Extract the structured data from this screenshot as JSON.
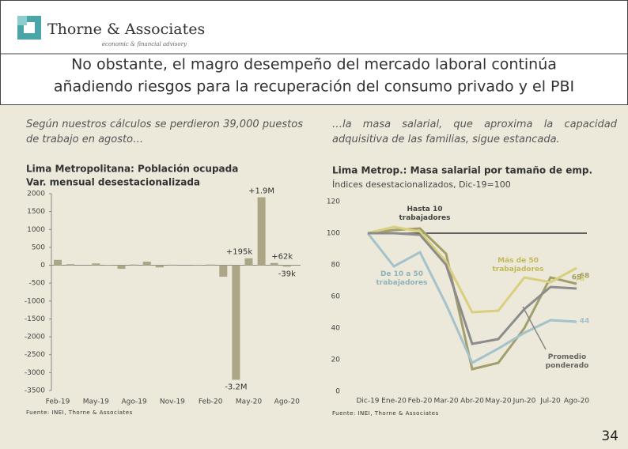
{
  "header": {
    "brand": "Thorne & Associates",
    "tagline": "economic & financial advisory",
    "title_lines": [
      "No obstante, el magro desempeño del mercado laboral continúa",
      "añadiendo riesgos para la recuperación del consumo privado y el PBI"
    ]
  },
  "intro": [
    "Según nuestros cálculos se perdieron 39,000 puestos de trabajo en agosto…",
    "…la masa salarial, que aproxima la capacidad adquisitiva de las familias, sigue estancada."
  ],
  "page_number": "34",
  "chart_data": [
    {
      "type": "bar",
      "title": "Lima Metropolitana: Población ocupada",
      "subtitle": "Var. mensual desestacionalizada",
      "source": "Fuente: INEI, Thorne & Associates",
      "color": "#aaa686",
      "categories": [
        "Feb-19",
        null,
        null,
        "May-19",
        null,
        null,
        "Ago-19",
        null,
        null,
        "Nov-19",
        null,
        null,
        "Feb-20",
        null,
        null,
        "May-20",
        null,
        null,
        "Ago-20"
      ],
      "values": [
        150,
        30,
        0,
        50,
        10,
        -100,
        20,
        100,
        -60,
        15,
        0,
        10,
        20,
        -320,
        -3200,
        195,
        1900,
        62,
        -39
      ],
      "value_labels": [
        null,
        null,
        null,
        null,
        null,
        null,
        null,
        null,
        null,
        null,
        null,
        null,
        null,
        null,
        "-3.2M",
        "+195k",
        "+1.9M",
        "+62k",
        "-39k"
      ],
      "ylim": [
        -3500,
        2000
      ],
      "yticks": [
        -3500,
        -3000,
        -2500,
        -2000,
        -1500,
        -1000,
        -500,
        0,
        500,
        1000,
        1500,
        2000
      ]
    },
    {
      "type": "line",
      "title": "Lima Metrop.: Masa salarial por tamaño de emp.",
      "subtitle": "Índices desestacionalizados, Dic-19=100",
      "source": "Fuente: INEI, Thorne & Associates",
      "reference_line": 100,
      "categories": [
        "Dic-19",
        "Ene-20",
        "Feb-20",
        "Mar-20",
        "Abr-20",
        "May-20",
        "Jun-20",
        "Jul-20",
        "Ago-20"
      ],
      "series": [
        {
          "name": "Hasta 10 trabajadores",
          "color": "#a39f6c",
          "values": [
            100,
            102,
            103,
            87,
            14,
            18,
            40,
            72,
            68
          ]
        },
        {
          "name": "De 10 a 50 trabajadores",
          "color": "#a3c2c9",
          "values": [
            100,
            79,
            88,
            55,
            18,
            27,
            37,
            45,
            44
          ]
        },
        {
          "name": "Más de 50 trabajadores",
          "color": "#d9d07e",
          "values": [
            100,
            104,
            101,
            82,
            50,
            51,
            72,
            69,
            78
          ]
        },
        {
          "name": "Promedio ponderado",
          "color": "#8c8c8c",
          "values": [
            100,
            100,
            99,
            80,
            30,
            33,
            52,
            66,
            65
          ]
        }
      ],
      "ylim": [
        0,
        120
      ],
      "yticks": [
        0,
        20,
        40,
        60,
        80,
        100,
        120
      ]
    }
  ]
}
